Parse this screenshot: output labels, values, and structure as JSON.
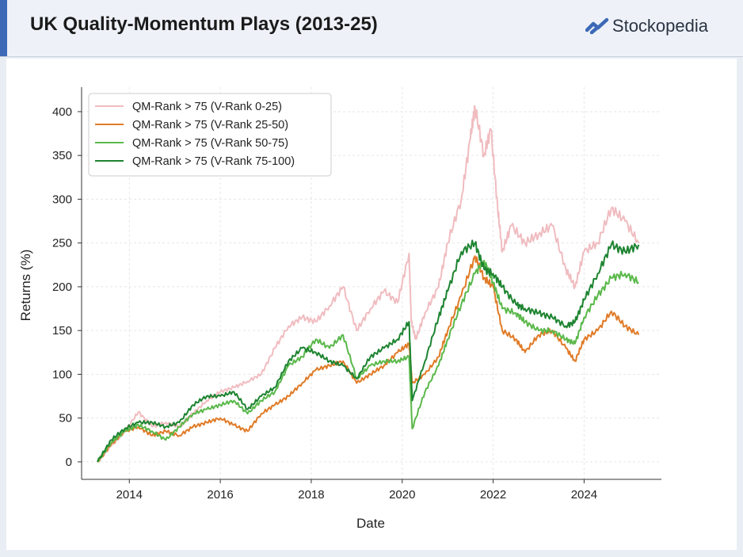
{
  "header": {
    "title": "UK Quality-Momentum Plays (2013-25)",
    "brand_name": "Stockopedia",
    "brand_icon": "stockopedia-logo-icon",
    "accent_color": "#3d69b6"
  },
  "chart_data": {
    "type": "line",
    "title": "",
    "xlabel": "Date",
    "ylabel": "Returns (%)",
    "xlim": [
      2012.95,
      2025.7
    ],
    "ylim": [
      -20,
      428
    ],
    "xticks": [
      2014,
      2016,
      2018,
      2020,
      2022,
      2024
    ],
    "xtick_labels": [
      "2014",
      "2016",
      "2018",
      "2020",
      "2022",
      "2024"
    ],
    "yticks": [
      0,
      50,
      100,
      150,
      200,
      250,
      300,
      350,
      400
    ],
    "ytick_labels": [
      "0",
      "50",
      "100",
      "150",
      "200",
      "250",
      "300",
      "350",
      "400"
    ],
    "grid": true,
    "legend_position": "top-left",
    "series": [
      {
        "name": "QM-Rank > 75 (V-Rank 0-25)",
        "color": "#f0bcc0",
        "points": [
          [
            2013.3,
            0
          ],
          [
            2013.6,
            18
          ],
          [
            2013.9,
            35
          ],
          [
            2014.2,
            57
          ],
          [
            2014.5,
            40
          ],
          [
            2014.8,
            45
          ],
          [
            2015.1,
            40
          ],
          [
            2015.4,
            55
          ],
          [
            2015.7,
            70
          ],
          [
            2016.0,
            80
          ],
          [
            2016.3,
            85
          ],
          [
            2016.6,
            92
          ],
          [
            2016.9,
            100
          ],
          [
            2017.2,
            130
          ],
          [
            2017.5,
            155
          ],
          [
            2017.8,
            165
          ],
          [
            2018.1,
            160
          ],
          [
            2018.4,
            178
          ],
          [
            2018.7,
            200
          ],
          [
            2019.0,
            150
          ],
          [
            2019.3,
            175
          ],
          [
            2019.6,
            195
          ],
          [
            2019.9,
            182
          ],
          [
            2020.15,
            238
          ],
          [
            2020.2,
            160
          ],
          [
            2020.3,
            140
          ],
          [
            2020.5,
            170
          ],
          [
            2020.8,
            200
          ],
          [
            2021.0,
            250
          ],
          [
            2021.3,
            300
          ],
          [
            2021.5,
            370
          ],
          [
            2021.6,
            405
          ],
          [
            2021.8,
            350
          ],
          [
            2021.95,
            380
          ],
          [
            2022.1,
            290
          ],
          [
            2022.2,
            240
          ],
          [
            2022.4,
            270
          ],
          [
            2022.7,
            250
          ],
          [
            2023.0,
            260
          ],
          [
            2023.3,
            270
          ],
          [
            2023.6,
            220
          ],
          [
            2023.8,
            200
          ],
          [
            2024.0,
            240
          ],
          [
            2024.3,
            250
          ],
          [
            2024.6,
            290
          ],
          [
            2024.9,
            275
          ],
          [
            2025.2,
            250
          ]
        ]
      },
      {
        "name": "QM-Rank > 75 (V-Rank 25-50)",
        "color": "#e07b28",
        "points": [
          [
            2013.3,
            0
          ],
          [
            2013.6,
            20
          ],
          [
            2013.9,
            35
          ],
          [
            2014.2,
            40
          ],
          [
            2014.5,
            30
          ],
          [
            2014.8,
            35
          ],
          [
            2015.1,
            30
          ],
          [
            2015.4,
            40
          ],
          [
            2015.7,
            45
          ],
          [
            2016.0,
            50
          ],
          [
            2016.3,
            42
          ],
          [
            2016.6,
            35
          ],
          [
            2016.9,
            55
          ],
          [
            2017.2,
            65
          ],
          [
            2017.5,
            75
          ],
          [
            2017.8,
            90
          ],
          [
            2018.1,
            105
          ],
          [
            2018.4,
            110
          ],
          [
            2018.7,
            115
          ],
          [
            2019.0,
            90
          ],
          [
            2019.3,
            100
          ],
          [
            2019.6,
            110
          ],
          [
            2019.9,
            125
          ],
          [
            2020.15,
            135
          ],
          [
            2020.22,
            90
          ],
          [
            2020.5,
            100
          ],
          [
            2020.8,
            120
          ],
          [
            2021.0,
            150
          ],
          [
            2021.3,
            190
          ],
          [
            2021.6,
            235
          ],
          [
            2021.8,
            210
          ],
          [
            2022.0,
            200
          ],
          [
            2022.2,
            150
          ],
          [
            2022.5,
            140
          ],
          [
            2022.7,
            125
          ],
          [
            2023.0,
            145
          ],
          [
            2023.3,
            150
          ],
          [
            2023.6,
            130
          ],
          [
            2023.8,
            115
          ],
          [
            2024.0,
            140
          ],
          [
            2024.3,
            150
          ],
          [
            2024.6,
            172
          ],
          [
            2024.9,
            155
          ],
          [
            2025.2,
            145
          ]
        ]
      },
      {
        "name": "QM-Rank > 75 (V-Rank 50-75)",
        "color": "#5ab84a",
        "points": [
          [
            2013.3,
            0
          ],
          [
            2013.6,
            22
          ],
          [
            2013.9,
            35
          ],
          [
            2014.2,
            42
          ],
          [
            2014.5,
            35
          ],
          [
            2014.8,
            25
          ],
          [
            2015.1,
            40
          ],
          [
            2015.4,
            55
          ],
          [
            2015.7,
            60
          ],
          [
            2016.0,
            65
          ],
          [
            2016.3,
            70
          ],
          [
            2016.6,
            55
          ],
          [
            2016.9,
            70
          ],
          [
            2017.2,
            80
          ],
          [
            2017.5,
            110
          ],
          [
            2017.8,
            120
          ],
          [
            2018.1,
            140
          ],
          [
            2018.4,
            130
          ],
          [
            2018.7,
            145
          ],
          [
            2019.0,
            95
          ],
          [
            2019.3,
            110
          ],
          [
            2019.6,
            115
          ],
          [
            2019.9,
            115
          ],
          [
            2020.15,
            120
          ],
          [
            2020.22,
            38
          ],
          [
            2020.5,
            80
          ],
          [
            2020.8,
            110
          ],
          [
            2021.0,
            140
          ],
          [
            2021.3,
            180
          ],
          [
            2021.6,
            215
          ],
          [
            2021.8,
            230
          ],
          [
            2022.0,
            205
          ],
          [
            2022.2,
            175
          ],
          [
            2022.5,
            170
          ],
          [
            2022.7,
            160
          ],
          [
            2023.0,
            150
          ],
          [
            2023.3,
            150
          ],
          [
            2023.6,
            140
          ],
          [
            2023.8,
            135
          ],
          [
            2024.0,
            165
          ],
          [
            2024.3,
            190
          ],
          [
            2024.6,
            210
          ],
          [
            2024.9,
            215
          ],
          [
            2025.2,
            205
          ]
        ]
      },
      {
        "name": "QM-Rank > 75 (V-Rank 75-100)",
        "color": "#1e8431",
        "points": [
          [
            2013.3,
            0
          ],
          [
            2013.6,
            25
          ],
          [
            2013.9,
            38
          ],
          [
            2014.2,
            45
          ],
          [
            2014.5,
            45
          ],
          [
            2014.8,
            40
          ],
          [
            2015.1,
            45
          ],
          [
            2015.4,
            65
          ],
          [
            2015.7,
            75
          ],
          [
            2016.0,
            75
          ],
          [
            2016.3,
            80
          ],
          [
            2016.6,
            60
          ],
          [
            2016.9,
            75
          ],
          [
            2017.2,
            85
          ],
          [
            2017.5,
            115
          ],
          [
            2017.8,
            130
          ],
          [
            2018.1,
            125
          ],
          [
            2018.4,
            115
          ],
          [
            2018.7,
            110
          ],
          [
            2019.0,
            95
          ],
          [
            2019.3,
            120
          ],
          [
            2019.6,
            130
          ],
          [
            2019.9,
            140
          ],
          [
            2020.15,
            160
          ],
          [
            2020.22,
            70
          ],
          [
            2020.5,
            115
          ],
          [
            2020.8,
            165
          ],
          [
            2021.0,
            195
          ],
          [
            2021.3,
            240
          ],
          [
            2021.6,
            250
          ],
          [
            2021.8,
            220
          ],
          [
            2022.0,
            215
          ],
          [
            2022.2,
            200
          ],
          [
            2022.5,
            180
          ],
          [
            2022.7,
            175
          ],
          [
            2023.0,
            170
          ],
          [
            2023.3,
            165
          ],
          [
            2023.6,
            155
          ],
          [
            2023.8,
            160
          ],
          [
            2024.0,
            185
          ],
          [
            2024.3,
            215
          ],
          [
            2024.6,
            248
          ],
          [
            2024.9,
            240
          ],
          [
            2025.2,
            248
          ]
        ]
      }
    ]
  }
}
